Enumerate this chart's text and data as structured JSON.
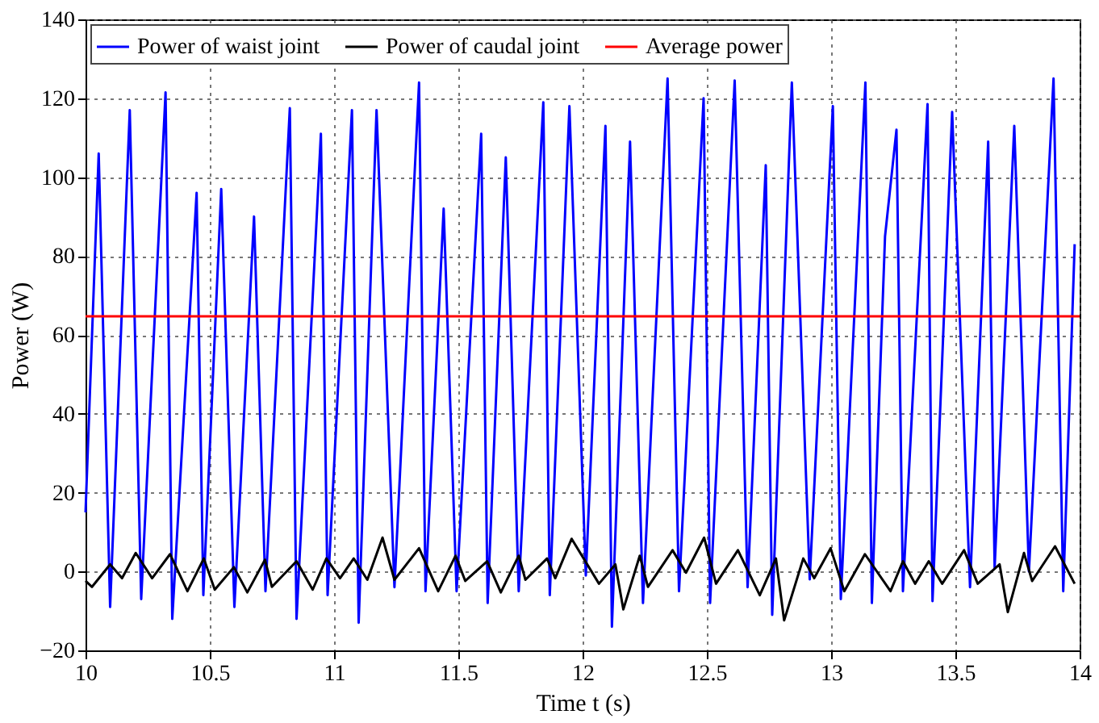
{
  "chart_data": {
    "type": "line",
    "xlabel": "Time t (s)",
    "ylabel": "Power (W)",
    "xlim": [
      10,
      14
    ],
    "xticks": [
      10,
      10.5,
      11,
      11.5,
      12,
      12.5,
      13,
      13.5,
      14
    ],
    "ylim": [
      -20,
      140
    ],
    "yticks": [
      -20,
      0,
      20,
      40,
      60,
      80,
      100,
      120,
      140
    ],
    "grid": true,
    "legend": "top",
    "marker": "none",
    "line_style": "solid",
    "series": [
      {
        "name": "Power of waist joint",
        "color": "#0000ff",
        "x": [
          10.0,
          10.053,
          10.099,
          10.178,
          10.224,
          10.322,
          10.349,
          10.447,
          10.474,
          10.546,
          10.599,
          10.678,
          10.724,
          10.822,
          10.849,
          10.947,
          10.974,
          11.072,
          11.099,
          11.171,
          11.243,
          11.342,
          11.368,
          11.441,
          11.493,
          11.592,
          11.618,
          11.691,
          11.743,
          11.842,
          11.868,
          11.947,
          12.013,
          12.092,
          12.118,
          12.191,
          12.243,
          12.342,
          12.388,
          12.487,
          12.513,
          12.612,
          12.664,
          12.737,
          12.763,
          12.842,
          12.914,
          13.007,
          13.039,
          13.138,
          13.164,
          13.217,
          13.263,
          13.289,
          13.388,
          13.408,
          13.487,
          13.559,
          13.632,
          13.658,
          13.737,
          13.796,
          13.895,
          13.934,
          13.98
        ],
        "values": [
          15,
          106,
          -9,
          117,
          -7,
          121.5,
          -12,
          96,
          -6,
          97,
          -9,
          90,
          -5,
          117.5,
          -12,
          111,
          -6,
          117,
          -13,
          117,
          -4,
          124,
          -5,
          92,
          -5,
          111,
          -8,
          105,
          -5,
          119,
          -6,
          118,
          -1,
          113,
          -14,
          109,
          -8,
          125,
          -5,
          120,
          -8,
          124.5,
          -4,
          103,
          -11,
          124,
          -2,
          118,
          -7,
          124,
          -8,
          85,
          112,
          -5,
          118.5,
          -7.5,
          116.5,
          -4,
          109,
          1,
          113,
          0,
          125,
          -5,
          83
        ]
      },
      {
        "name": "Power of caudal joint",
        "color": "#000000",
        "x": [
          10.0,
          10.026,
          10.099,
          10.147,
          10.202,
          10.268,
          10.34,
          10.41,
          10.476,
          10.52,
          10.597,
          10.651,
          10.722,
          10.75,
          10.849,
          10.914,
          10.969,
          11.024,
          11.079,
          11.134,
          11.195,
          11.243,
          11.342,
          11.419,
          11.489,
          11.528,
          11.616,
          11.671,
          11.743,
          11.77,
          11.857,
          11.89,
          11.956,
          12.066,
          12.132,
          12.164,
          12.23,
          12.263,
          12.362,
          12.416,
          12.489,
          12.537,
          12.625,
          12.713,
          12.778,
          12.811,
          12.888,
          12.932,
          12.998,
          13.053,
          13.136,
          13.239,
          13.289,
          13.338,
          13.393,
          13.447,
          13.535,
          13.59,
          13.678,
          13.711,
          13.776,
          13.809,
          13.901,
          13.98
        ],
        "values": [
          -2.4,
          -3.9,
          1.8,
          -1.7,
          4.7,
          -1.7,
          4.4,
          -5.0,
          3.3,
          -4.6,
          1.1,
          -5.3,
          3.0,
          -3.9,
          2.6,
          -4.6,
          3.3,
          -1.7,
          3.3,
          -2.1,
          8.6,
          -2.1,
          5.9,
          -5.0,
          4.0,
          -2.4,
          2.6,
          -5.3,
          4.0,
          -2.1,
          3.3,
          -1.7,
          8.3,
          -3.1,
          1.8,
          -9.6,
          4.0,
          -3.9,
          5.4,
          -0.3,
          8.6,
          -3.1,
          5.4,
          -6.0,
          3.3,
          -12.4,
          3.3,
          -1.7,
          5.9,
          -5.0,
          4.4,
          -5.0,
          2.6,
          -3.1,
          2.6,
          -3.1,
          5.4,
          -3.1,
          1.8,
          -10.3,
          4.7,
          -2.4,
          6.4,
          -3.1
        ]
      },
      {
        "name": "Average power",
        "color": "#ff0000",
        "x": [
          10,
          14
        ],
        "values": [
          64.7,
          64.7
        ]
      }
    ]
  }
}
